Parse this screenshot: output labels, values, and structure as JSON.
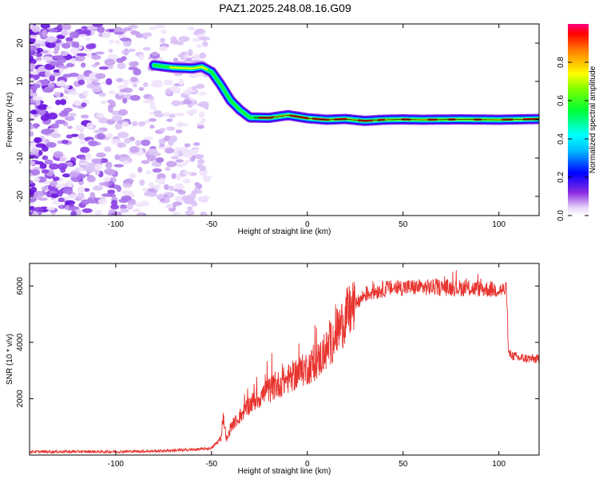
{
  "title": "PAZ1.2025.248.08.16.G09",
  "chart_data": [
    {
      "type": "heatmap",
      "name": "spectrogram",
      "xlabel": "Height of straight line (km)",
      "ylabel": "Frequency (Hz)",
      "xlim": [
        -145,
        121
      ],
      "ylim": [
        -25,
        25
      ],
      "xticks": [
        -100,
        -50,
        0,
        50,
        100
      ],
      "yticks": [
        20,
        10,
        0,
        -10,
        -20
      ],
      "ridge": [
        [
          -80,
          14.2
        ],
        [
          -70,
          13.6
        ],
        [
          -60,
          13.4
        ],
        [
          -55,
          13.8
        ],
        [
          -50,
          12.5
        ],
        [
          -45,
          9
        ],
        [
          -40,
          5
        ],
        [
          -35,
          2.5
        ],
        [
          -30,
          0.6
        ],
        [
          -20,
          0.5
        ],
        [
          -10,
          1.2
        ],
        [
          0,
          0.4
        ],
        [
          10,
          0
        ],
        [
          20,
          0.2
        ],
        [
          30,
          -0.3
        ],
        [
          40,
          0
        ],
        [
          50,
          0.1
        ],
        [
          60,
          0
        ],
        [
          80,
          0.1
        ],
        [
          100,
          0
        ],
        [
          121,
          0.2
        ]
      ],
      "noise_region": [
        -145,
        -60
      ],
      "colorbar": {
        "label": "Normalized spectral amplitude",
        "range": [
          0,
          1
        ],
        "ticks": [
          "0.0",
          "0.2",
          "0.4",
          "0.6",
          "0.8"
        ],
        "tick_values": [
          0,
          0.2,
          0.4,
          0.6,
          0.8
        ]
      }
    },
    {
      "type": "line",
      "name": "snr",
      "xlabel": "Height of straight line (km)",
      "ylabel": "SNR (10 * v/v)",
      "xlim": [
        -145,
        121
      ],
      "ylim": [
        0,
        6800
      ],
      "xticks": [
        -100,
        -50,
        0,
        50,
        100
      ],
      "yticks": [
        2000,
        4000,
        6000
      ],
      "color": "#e8332e",
      "envelope": [
        [
          -145,
          120
        ],
        [
          -100,
          120
        ],
        [
          -80,
          140
        ],
        [
          -60,
          190
        ],
        [
          -50,
          240
        ],
        [
          -45,
          600
        ],
        [
          -44,
          1400
        ],
        [
          -42,
          500
        ],
        [
          -40,
          1000
        ],
        [
          -30,
          1800
        ],
        [
          -20,
          2300
        ],
        [
          -10,
          2700
        ],
        [
          0,
          3100
        ],
        [
          5,
          3300
        ],
        [
          10,
          3700
        ],
        [
          15,
          4300
        ],
        [
          20,
          4900
        ],
        [
          25,
          5300
        ],
        [
          30,
          5700
        ],
        [
          40,
          5900
        ],
        [
          50,
          5950
        ],
        [
          70,
          5950
        ],
        [
          90,
          5900
        ],
        [
          104,
          5850
        ],
        [
          105,
          3600
        ],
        [
          110,
          3450
        ],
        [
          121,
          3400
        ]
      ]
    }
  ]
}
